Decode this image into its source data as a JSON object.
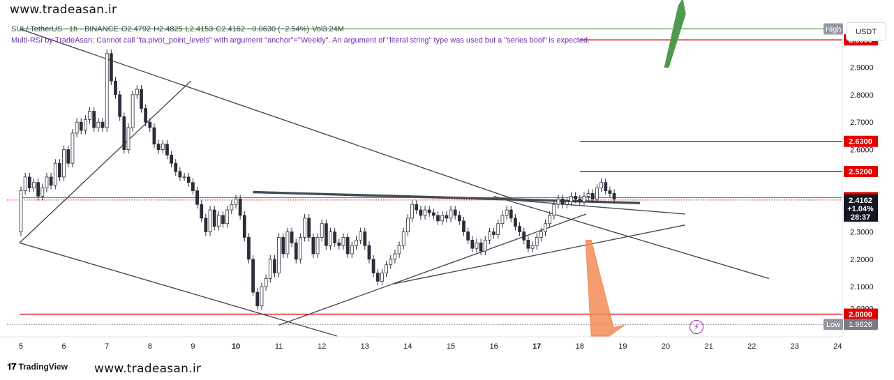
{
  "watermark": {
    "top": "www.tradeasan.ir",
    "bottom": "www.tradeasan.ir"
  },
  "legend": {
    "symbol": "SUI / TetherUS · 1h · BINANCE",
    "open": "O2.4792",
    "high": "H2.4825",
    "low": "L2.4153",
    "close": "C2.4162",
    "change": "−0.0630 (−2.54%)",
    "volume": "Vol3.24M"
  },
  "warning": "Multi-RSI by TradeAsan: Cannot call \"ta.pivot_point_levels\" with argument \"anchor\"=\"Weekly\". An argument of \"literal string\" type was used but a \"series bool\" is expected.",
  "currency_button": "USDT",
  "branding": "TradingView",
  "colors": {
    "up": "#26a69a",
    "down": "#ef5350",
    "candle": "#2a2e39",
    "red_level": "#e00000",
    "green_level": "#4caf50",
    "teal_level": "#26a69a",
    "trendline": "#474a54",
    "arrow_up": "#4f9a4f",
    "arrow_down": "#f28c58",
    "purple": "#9c27b0"
  },
  "icons": {
    "flash": "lightning-icon"
  },
  "chart_data": {
    "type": "candlestick",
    "timeframe": "1h",
    "y_axis": {
      "min": 1.92,
      "max": 3.12,
      "ticks": [
        "2.0200",
        "2.1000",
        "2.2000",
        "2.3000",
        "2.6000",
        "2.7000",
        "2.8000",
        "2.9000"
      ]
    },
    "x_axis": {
      "ticks": [
        "5",
        "6",
        "7",
        "8",
        "9",
        "10",
        "11",
        "12",
        "13",
        "14",
        "15",
        "16",
        "17",
        "18",
        "19",
        "20",
        "21",
        "22",
        "23",
        "24"
      ]
    },
    "price_labels": [
      {
        "text": "High",
        "value": "",
        "price": 3.04,
        "kind": "high"
      },
      {
        "text": "3.0000",
        "price": 3.0,
        "kind": "red"
      },
      {
        "text": "2.6300",
        "price": 2.63,
        "kind": "red"
      },
      {
        "text": "2.5200",
        "price": 2.52,
        "kind": "red"
      },
      {
        "text": "2.4247",
        "price": 2.4247,
        "kind": "red"
      },
      {
        "text": "2.4162",
        "price": 2.4162,
        "kind": "last"
      },
      {
        "text": "+1.04%",
        "price": 2.385,
        "kind": "last-sub"
      },
      {
        "text": "28:37",
        "price": 2.355,
        "kind": "last-sub"
      },
      {
        "text": "2.0000",
        "price": 2.0,
        "kind": "red"
      },
      {
        "text": "Low",
        "value": "1.9626",
        "price": 1.9626,
        "kind": "low"
      }
    ],
    "horizontal_levels": [
      {
        "price": 3.0,
        "color": "red",
        "from_day": 18.0
      },
      {
        "price": 2.63,
        "color": "red",
        "from_day": 18.0
      },
      {
        "price": 2.52,
        "color": "red",
        "from_day": 18.0
      },
      {
        "price": 2.4247,
        "color": "teal",
        "from_day": 4.97
      },
      {
        "price": 2.0,
        "color": "red",
        "from_day": 4.97
      },
      {
        "price": 3.04,
        "color": "green",
        "from_day": 4.97
      }
    ],
    "dotted_levels": [
      {
        "price": 2.4162,
        "color": "red"
      },
      {
        "price": 1.9626,
        "color": "gray"
      }
    ],
    "trendlines": [
      {
        "x1": 4.97,
        "y1": 3.04,
        "x2": 16.45,
        "y2": 2.42,
        "width": 1.4
      },
      {
        "x1": 4.97,
        "y1": 2.26,
        "x2": 12.35,
        "y2": 1.92,
        "width": 1.4
      },
      {
        "x1": 4.97,
        "y1": 2.26,
        "x2": 8.95,
        "y2": 2.85,
        "width": 1.4
      },
      {
        "x1": 10.4,
        "y1": 2.445,
        "x2": 19.4,
        "y2": 2.405,
        "width": 3.4
      },
      {
        "x1": 11.0,
        "y1": 1.96,
        "x2": 18.15,
        "y2": 2.365,
        "width": 1.4
      },
      {
        "x1": 13.65,
        "y1": 2.11,
        "x2": 20.45,
        "y2": 2.325,
        "width": 1.4
      },
      {
        "x1": 16.5,
        "y1": 2.415,
        "x2": 20.45,
        "y2": 2.365,
        "width": 1.4
      },
      {
        "x1": 16.0,
        "y1": 2.43,
        "x2": 22.4,
        "y2": 2.13,
        "width": 1.4
      }
    ],
    "arrows": [
      {
        "dir": "up",
        "x_day": 20.1,
        "from_price": 2.9,
        "to_price": 3.15
      },
      {
        "dir": "down",
        "x_day": 18.2,
        "from_price": 2.27,
        "to_price": 1.92
      }
    ],
    "last_price": 2.4162,
    "candles": [
      [
        5.0,
        2.3,
        2.45
      ],
      [
        5.1,
        2.45,
        2.5
      ],
      [
        5.2,
        2.5,
        2.46
      ],
      [
        5.3,
        2.46,
        2.48
      ],
      [
        5.4,
        2.48,
        2.43
      ],
      [
        5.5,
        2.43,
        2.46
      ],
      [
        5.6,
        2.46,
        2.5
      ],
      [
        5.7,
        2.5,
        2.47
      ],
      [
        5.8,
        2.47,
        2.55
      ],
      [
        5.9,
        2.55,
        2.5
      ],
      [
        6.0,
        2.5,
        2.6
      ],
      [
        6.1,
        2.6,
        2.55
      ],
      [
        6.2,
        2.55,
        2.66
      ],
      [
        6.3,
        2.66,
        2.7
      ],
      [
        6.4,
        2.7,
        2.67
      ],
      [
        6.5,
        2.67,
        2.71
      ],
      [
        6.6,
        2.71,
        2.74
      ],
      [
        6.7,
        2.74,
        2.68
      ],
      [
        6.8,
        2.68,
        2.7
      ],
      [
        6.9,
        2.7,
        2.68
      ],
      [
        7.0,
        2.68,
        2.95
      ],
      [
        7.1,
        2.95,
        2.85
      ],
      [
        7.2,
        2.85,
        2.8
      ],
      [
        7.3,
        2.8,
        2.72
      ],
      [
        7.4,
        2.72,
        2.6
      ],
      [
        7.5,
        2.6,
        2.68
      ],
      [
        7.6,
        2.68,
        2.8
      ],
      [
        7.7,
        2.8,
        2.82
      ],
      [
        7.8,
        2.82,
        2.75
      ],
      [
        7.9,
        2.75,
        2.7
      ],
      [
        8.0,
        2.7,
        2.68
      ],
      [
        8.1,
        2.68,
        2.62
      ],
      [
        8.2,
        2.62,
        2.6
      ],
      [
        8.3,
        2.6,
        2.62
      ],
      [
        8.4,
        2.62,
        2.58
      ],
      [
        8.5,
        2.58,
        2.55
      ],
      [
        8.6,
        2.55,
        2.52
      ],
      [
        8.7,
        2.52,
        2.5
      ],
      [
        8.8,
        2.5,
        2.5
      ],
      [
        8.9,
        2.5,
        2.48
      ],
      [
        9.0,
        2.48,
        2.45
      ],
      [
        9.1,
        2.45,
        2.4
      ],
      [
        9.2,
        2.4,
        2.35
      ],
      [
        9.3,
        2.35,
        2.3
      ],
      [
        9.4,
        2.3,
        2.38
      ],
      [
        9.5,
        2.38,
        2.32
      ],
      [
        9.6,
        2.32,
        2.36
      ],
      [
        9.7,
        2.36,
        2.33
      ],
      [
        9.8,
        2.33,
        2.38
      ],
      [
        9.9,
        2.38,
        2.4
      ],
      [
        10.0,
        2.4,
        2.42
      ],
      [
        10.1,
        2.42,
        2.36
      ],
      [
        10.2,
        2.36,
        2.28
      ],
      [
        10.3,
        2.28,
        2.2
      ],
      [
        10.4,
        2.2,
        2.08
      ],
      [
        10.5,
        2.08,
        2.03
      ],
      [
        10.6,
        2.03,
        2.1
      ],
      [
        10.7,
        2.1,
        2.13
      ],
      [
        10.8,
        2.13,
        2.2
      ],
      [
        10.9,
        2.2,
        2.15
      ],
      [
        11.0,
        2.15,
        2.28
      ],
      [
        11.1,
        2.28,
        2.22
      ],
      [
        11.2,
        2.22,
        2.3
      ],
      [
        11.3,
        2.3,
        2.26
      ],
      [
        11.4,
        2.26,
        2.2
      ],
      [
        11.5,
        2.2,
        2.28
      ],
      [
        11.6,
        2.28,
        2.35
      ],
      [
        11.7,
        2.35,
        2.28
      ],
      [
        11.8,
        2.28,
        2.22
      ],
      [
        11.9,
        2.22,
        2.28
      ],
      [
        12.0,
        2.28,
        2.33
      ],
      [
        12.1,
        2.33,
        2.25
      ],
      [
        12.2,
        2.25,
        2.3
      ],
      [
        12.3,
        2.3,
        2.26
      ],
      [
        12.4,
        2.26,
        2.25
      ],
      [
        12.5,
        2.25,
        2.28
      ],
      [
        12.6,
        2.28,
        2.22
      ],
      [
        12.7,
        2.22,
        2.25
      ],
      [
        12.8,
        2.25,
        2.27
      ],
      [
        12.9,
        2.27,
        2.3
      ],
      [
        13.0,
        2.3,
        2.25
      ],
      [
        13.1,
        2.25,
        2.2
      ],
      [
        13.2,
        2.2,
        2.15
      ],
      [
        13.3,
        2.15,
        2.12
      ],
      [
        13.4,
        2.12,
        2.15
      ],
      [
        13.5,
        2.15,
        2.18
      ],
      [
        13.6,
        2.18,
        2.2
      ],
      [
        13.7,
        2.2,
        2.22
      ],
      [
        13.8,
        2.22,
        2.25
      ],
      [
        13.9,
        2.25,
        2.3
      ],
      [
        14.0,
        2.3,
        2.35
      ],
      [
        14.1,
        2.35,
        2.4
      ],
      [
        14.2,
        2.4,
        2.38
      ],
      [
        14.3,
        2.38,
        2.36
      ],
      [
        14.4,
        2.36,
        2.38
      ],
      [
        14.5,
        2.38,
        2.37
      ],
      [
        14.6,
        2.37,
        2.36
      ],
      [
        14.7,
        2.36,
        2.34
      ],
      [
        14.8,
        2.34,
        2.36
      ],
      [
        14.9,
        2.36,
        2.35
      ],
      [
        15.0,
        2.35,
        2.38
      ],
      [
        15.1,
        2.38,
        2.36
      ],
      [
        15.2,
        2.36,
        2.34
      ],
      [
        15.3,
        2.34,
        2.3
      ],
      [
        15.4,
        2.3,
        2.27
      ],
      [
        15.5,
        2.27,
        2.24
      ],
      [
        15.6,
        2.24,
        2.26
      ],
      [
        15.7,
        2.26,
        2.23
      ],
      [
        15.8,
        2.23,
        2.27
      ],
      [
        15.9,
        2.27,
        2.3
      ],
      [
        16.0,
        2.3,
        2.29
      ],
      [
        16.1,
        2.29,
        2.33
      ],
      [
        16.2,
        2.33,
        2.36
      ],
      [
        16.3,
        2.36,
        2.38
      ],
      [
        16.4,
        2.38,
        2.35
      ],
      [
        16.5,
        2.35,
        2.32
      ],
      [
        16.6,
        2.32,
        2.3
      ],
      [
        16.7,
        2.3,
        2.27
      ],
      [
        16.8,
        2.27,
        2.24
      ],
      [
        16.9,
        2.24,
        2.25
      ],
      [
        17.0,
        2.25,
        2.28
      ],
      [
        17.1,
        2.28,
        2.3
      ],
      [
        17.2,
        2.3,
        2.33
      ],
      [
        17.3,
        2.33,
        2.36
      ],
      [
        17.4,
        2.36,
        2.4
      ],
      [
        17.5,
        2.4,
        2.42
      ],
      [
        17.6,
        2.42,
        2.4
      ],
      [
        17.7,
        2.4,
        2.41
      ],
      [
        17.8,
        2.41,
        2.43
      ],
      [
        17.9,
        2.43,
        2.42
      ],
      [
        18.0,
        2.42,
        2.41
      ],
      [
        18.1,
        2.41,
        2.43
      ],
      [
        18.2,
        2.43,
        2.44
      ],
      [
        18.3,
        2.44,
        2.42
      ],
      [
        18.4,
        2.42,
        2.46
      ],
      [
        18.5,
        2.46,
        2.48
      ],
      [
        18.6,
        2.48,
        2.45
      ],
      [
        18.7,
        2.45,
        2.44
      ],
      [
        18.8,
        2.44,
        2.42
      ]
    ]
  }
}
